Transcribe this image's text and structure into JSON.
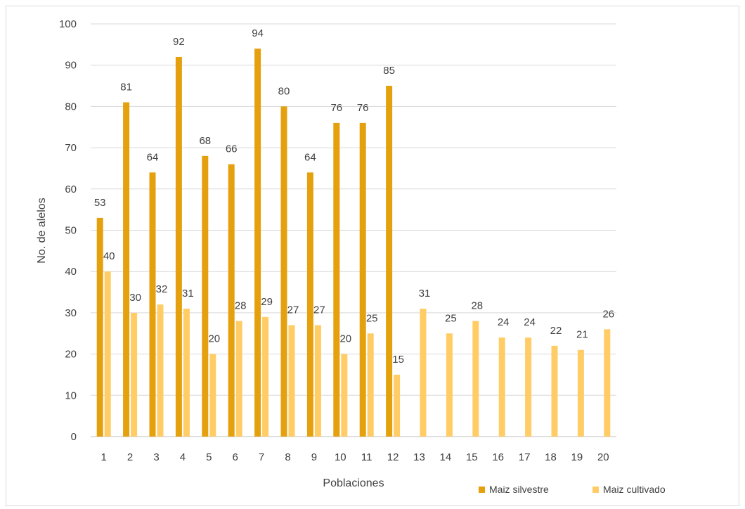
{
  "chart_data": {
    "type": "bar",
    "categories": [
      "1",
      "2",
      "3",
      "4",
      "5",
      "6",
      "7",
      "8",
      "9",
      "10",
      "11",
      "12",
      "13",
      "14",
      "15",
      "16",
      "17",
      "18",
      "19",
      "20"
    ],
    "series": [
      {
        "name": "Maiz silvestre",
        "color": "#E5A00D",
        "values": [
          53,
          81,
          64,
          92,
          68,
          66,
          94,
          80,
          64,
          76,
          76,
          85,
          null,
          null,
          null,
          null,
          null,
          null,
          null,
          null
        ]
      },
      {
        "name": "Maiz cultivado",
        "color": "#FFCC66",
        "values": [
          40,
          30,
          32,
          31,
          20,
          28,
          29,
          27,
          27,
          20,
          25,
          15,
          31,
          25,
          28,
          24,
          24,
          22,
          21,
          26
        ]
      }
    ],
    "title": "",
    "xlabel": "Poblaciones",
    "ylabel": "No. de alelos",
    "ylim": [
      0,
      100
    ],
    "yticks": [
      0,
      10,
      20,
      30,
      40,
      50,
      60,
      70,
      80,
      90,
      100
    ],
    "grid": true,
    "legend_position": "bottom-right"
  }
}
